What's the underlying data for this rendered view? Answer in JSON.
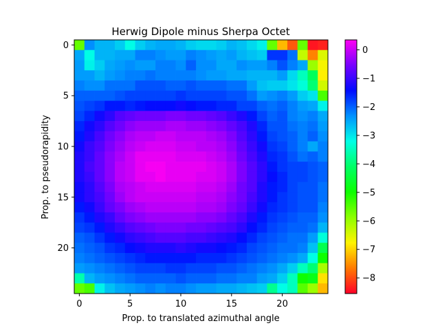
{
  "chart_data": {
    "type": "heatmap",
    "title": "Herwig Dipole minus Sherpa Octet",
    "xlabel": "Prop. to translated azimuthal angle",
    "ylabel": "Prop. to pseudorapidity",
    "grid": false,
    "colormap": "gist_rainbow",
    "colormap_stops": [
      "#ff0028",
      "#ff7a00",
      "#fff400",
      "#8dff00",
      "#0dff00",
      "#00ff65",
      "#00ffe6",
      "#0092ff",
      "#000bff",
      "#7700ff",
      "#ff00f2"
    ],
    "value_range": [
      -8.55,
      0.35
    ],
    "x_range": [
      -0.5,
      24.5
    ],
    "y_range": [
      -0.5,
      24.5
    ],
    "x_ticks": [
      0,
      5,
      10,
      15,
      20
    ],
    "y_ticks": [
      0,
      5,
      10,
      15,
      20
    ],
    "colorbar_ticks": [
      0,
      -1,
      -2,
      -3,
      -4,
      -5,
      -6,
      -7,
      -8
    ],
    "colorbar_tick_labels": [
      "0",
      "−1",
      "−2",
      "−3",
      "−4",
      "−5",
      "−6",
      "−7",
      "−8"
    ],
    "rows": 25,
    "cols": 25,
    "values": [
      [
        -5.6,
        -2.3,
        -2.6,
        -2.6,
        -2.8,
        -3.2,
        -2.8,
        -2.6,
        -2.5,
        -2.5,
        -2.6,
        -2.8,
        -2.9,
        -2.9,
        -2.8,
        -2.6,
        -2.7,
        -2.9,
        -3.1,
        -5.6,
        -7.2,
        -7.9,
        -5.6,
        -8.4,
        -8.3
      ],
      [
        -2.5,
        -3.2,
        -2.6,
        -2.6,
        -2.5,
        -2.5,
        -2.2,
        -2.2,
        -2.3,
        -2.4,
        -2.4,
        -2.2,
        -2.3,
        -2.4,
        -2.5,
        -2.4,
        -2.6,
        -2.7,
        -2.8,
        -1.7,
        -1.7,
        -2.1,
        -6.3,
        -7.6,
        -6.5
      ],
      [
        -2.4,
        -3.1,
        -2.8,
        -2.5,
        -2.4,
        -2.3,
        -2.4,
        -2.4,
        -2.2,
        -2.2,
        -2.3,
        -2.0,
        -2.3,
        -2.3,
        -2.5,
        -2.5,
        -2.3,
        -2.4,
        -2.4,
        -2.2,
        -1.9,
        -2.2,
        -2.5,
        -6.0,
        -6.7
      ],
      [
        -2.4,
        -2.4,
        -2.6,
        -2.4,
        -2.3,
        -2.2,
        -2.2,
        -2.1,
        -2.2,
        -2.2,
        -2.2,
        -2.2,
        -2.3,
        -2.4,
        -2.4,
        -2.5,
        -2.5,
        -2.6,
        -2.6,
        -2.6,
        -2.4,
        -2.9,
        -3.5,
        -4.2,
        -6.8
      ],
      [
        -2.2,
        -2.3,
        -2.3,
        -2.1,
        -2.1,
        -2.1,
        -1.9,
        -1.9,
        -1.9,
        -2.0,
        -2.0,
        -1.9,
        -2.0,
        -2.0,
        -2.0,
        -2.1,
        -2.1,
        -2.4,
        -2.7,
        -2.8,
        -2.8,
        -3.0,
        -3.3,
        -4.0,
        -6.4
      ],
      [
        -2.0,
        -2.0,
        -2.0,
        -2.0,
        -1.9,
        -1.8,
        -1.8,
        -1.8,
        -1.8,
        -1.8,
        -1.7,
        -1.8,
        -1.8,
        -1.8,
        -1.8,
        -1.9,
        -1.9,
        -2.1,
        -2.4,
        -2.3,
        -2.2,
        -2.4,
        -2.8,
        -3.0,
        -5.4
      ],
      [
        -1.9,
        -1.8,
        -1.7,
        -1.5,
        -1.5,
        -1.6,
        -1.5,
        -1.4,
        -1.4,
        -1.4,
        -1.3,
        -1.4,
        -1.5,
        -1.5,
        -1.6,
        -1.6,
        -1.8,
        -1.8,
        -2.0,
        -2.1,
        -2.0,
        -2.2,
        -2.4,
        -2.5,
        -3.1
      ],
      [
        -1.8,
        -1.6,
        -1.3,
        -1.1,
        -0.8,
        -0.7,
        -0.6,
        -0.6,
        -0.6,
        -0.5,
        -0.5,
        -0.6,
        -0.6,
        -0.7,
        -0.8,
        -1.0,
        -1.2,
        -1.5,
        -1.8,
        -2.0,
        -1.9,
        -2.2,
        -2.3,
        -2.2,
        -2.5
      ],
      [
        -1.6,
        -1.3,
        -1.1,
        -0.8,
        -0.6,
        -0.4,
        -0.3,
        -0.3,
        -0.3,
        -0.2,
        -0.2,
        -0.3,
        -0.3,
        -0.4,
        -0.5,
        -0.7,
        -0.9,
        -1.2,
        -1.6,
        -1.9,
        -1.9,
        -2.1,
        -2.2,
        -2.1,
        -2.4
      ],
      [
        -1.5,
        -1.2,
        -0.9,
        -0.6,
        -0.4,
        -0.2,
        -0.1,
        -0.1,
        0.0,
        0.0,
        -0.1,
        -0.1,
        -0.1,
        -0.2,
        -0.3,
        -0.5,
        -0.8,
        -1.1,
        -1.5,
        -1.8,
        -1.9,
        -2.0,
        -2.2,
        -2.0,
        -2.3
      ],
      [
        -1.3,
        -1.0,
        -0.8,
        -0.5,
        -0.3,
        -0.1,
        0.0,
        0.1,
        0.1,
        0.1,
        0.0,
        0.0,
        -0.1,
        -0.1,
        -0.2,
        -0.4,
        -0.7,
        -1.0,
        -1.3,
        -1.7,
        -1.8,
        -2.0,
        -2.2,
        -2.5,
        -2.2
      ],
      [
        -1.2,
        -1.0,
        -0.7,
        -0.4,
        -0.2,
        0.0,
        0.2,
        0.2,
        0.2,
        0.2,
        0.1,
        0.1,
        0.1,
        0.0,
        -0.1,
        -0.3,
        -0.6,
        -0.9,
        -1.2,
        -1.6,
        -1.7,
        -1.9,
        -2.1,
        -2.0,
        -2.2
      ],
      [
        -1.2,
        -0.9,
        -0.7,
        -0.4,
        -0.1,
        0.0,
        0.2,
        0.3,
        0.3,
        0.2,
        0.2,
        0.2,
        0.2,
        0.1,
        0.0,
        -0.2,
        -0.5,
        -0.8,
        -1.1,
        -1.5,
        -1.7,
        -1.8,
        -1.8,
        -1.9,
        -2.0
      ],
      [
        -1.2,
        -1.0,
        -0.7,
        -0.4,
        -0.1,
        0.0,
        0.2,
        0.2,
        0.3,
        0.2,
        0.2,
        0.2,
        0.1,
        0.1,
        0.0,
        -0.2,
        -0.5,
        -0.8,
        -1.1,
        -1.4,
        -1.6,
        -1.8,
        -1.8,
        -1.9,
        -2.0
      ],
      [
        -1.3,
        -1.1,
        -0.8,
        -0.5,
        -0.2,
        -0.1,
        0.0,
        0.1,
        0.1,
        0.1,
        0.1,
        0.1,
        0.0,
        0.0,
        -0.1,
        -0.3,
        -0.6,
        -0.8,
        -1.2,
        -1.5,
        -1.6,
        -1.8,
        -1.9,
        -1.9,
        -2.1
      ],
      [
        -1.3,
        -1.1,
        -0.9,
        -0.6,
        -0.3,
        -0.1,
        0.0,
        0.0,
        0.0,
        0.0,
        0.0,
        0.0,
        -0.1,
        -0.1,
        -0.2,
        -0.4,
        -0.6,
        -0.9,
        -1.2,
        -1.5,
        -1.7,
        -1.8,
        -1.9,
        -1.9,
        -2.1
      ],
      [
        -1.5,
        -1.3,
        -1.0,
        -0.7,
        -0.5,
        -0.3,
        -0.2,
        -0.1,
        -0.1,
        -0.1,
        -0.1,
        -0.1,
        -0.2,
        -0.2,
        -0.3,
        -0.5,
        -0.7,
        -1.0,
        -1.3,
        -1.6,
        -1.7,
        -1.8,
        -1.9,
        -1.9,
        -2.2
      ],
      [
        -1.7,
        -1.5,
        -1.2,
        -1.0,
        -0.7,
        -0.5,
        -0.4,
        -0.3,
        -0.3,
        -0.3,
        -0.3,
        -0.3,
        -0.4,
        -0.4,
        -0.5,
        -0.7,
        -0.9,
        -1.2,
        -1.5,
        -1.7,
        -1.8,
        -1.9,
        -2.0,
        -2.0,
        -2.3
      ],
      [
        -1.8,
        -1.7,
        -1.5,
        -1.2,
        -1.0,
        -0.8,
        -0.7,
        -0.6,
        -0.5,
        -0.5,
        -0.5,
        -0.6,
        -0.6,
        -0.7,
        -0.8,
        -0.9,
        -1.1,
        -1.4,
        -1.6,
        -1.8,
        -1.9,
        -2.0,
        -2.0,
        -2.1,
        -2.6
      ],
      [
        -2.0,
        -1.9,
        -1.7,
        -1.5,
        -1.3,
        -1.1,
        -1.0,
        -0.9,
        -0.8,
        -0.8,
        -0.8,
        -0.9,
        -0.9,
        -1.0,
        -1.1,
        -1.2,
        -1.4,
        -1.6,
        -1.8,
        -1.9,
        -2.0,
        -2.1,
        -2.1,
        -2.4,
        -3.3
      ],
      [
        -2.1,
        -2.0,
        -1.9,
        -1.7,
        -1.6,
        -1.4,
        -1.3,
        -1.2,
        -1.2,
        -1.2,
        -1.1,
        -1.2,
        -1.3,
        -1.3,
        -1.4,
        -1.5,
        -1.6,
        -1.8,
        -1.9,
        -2.0,
        -2.1,
        -2.1,
        -2.2,
        -2.7,
        -4.3
      ],
      [
        -2.2,
        -2.1,
        -2.0,
        -1.9,
        -1.8,
        -1.7,
        -1.6,
        -1.5,
        -1.5,
        -1.5,
        -1.5,
        -1.5,
        -1.6,
        -1.6,
        -1.6,
        -1.7,
        -1.8,
        -1.9,
        -2.0,
        -2.1,
        -2.2,
        -2.3,
        -2.5,
        -3.2,
        -5.0
      ],
      [
        -2.4,
        -2.3,
        -2.2,
        -2.1,
        -2.0,
        -1.9,
        -1.8,
        -1.8,
        -1.8,
        -1.7,
        -1.7,
        -1.8,
        -1.8,
        -1.8,
        -1.9,
        -1.9,
        -2.0,
        -2.1,
        -2.2,
        -2.3,
        -2.5,
        -2.8,
        -3.5,
        -4.0,
        -6.1
      ],
      [
        -3.6,
        -2.6,
        -2.4,
        -2.3,
        -2.2,
        -2.1,
        -2.0,
        -2.0,
        -2.0,
        -2.0,
        -1.9,
        -2.0,
        -2.0,
        -2.0,
        -2.1,
        -2.1,
        -2.2,
        -2.2,
        -2.4,
        -2.5,
        -2.8,
        -3.5,
        -5.0,
        -4.8,
        -6.9
      ],
      [
        -5.6,
        -5.4,
        -3.1,
        -2.7,
        -2.5,
        -2.4,
        -2.3,
        -2.2,
        -2.3,
        -2.2,
        -2.2,
        -2.3,
        -2.4,
        -2.4,
        -2.5,
        -2.5,
        -2.6,
        -2.7,
        -2.8,
        -3.8,
        -3.2,
        -3.5,
        -5.5,
        -6.0,
        -7.2
      ]
    ]
  }
}
